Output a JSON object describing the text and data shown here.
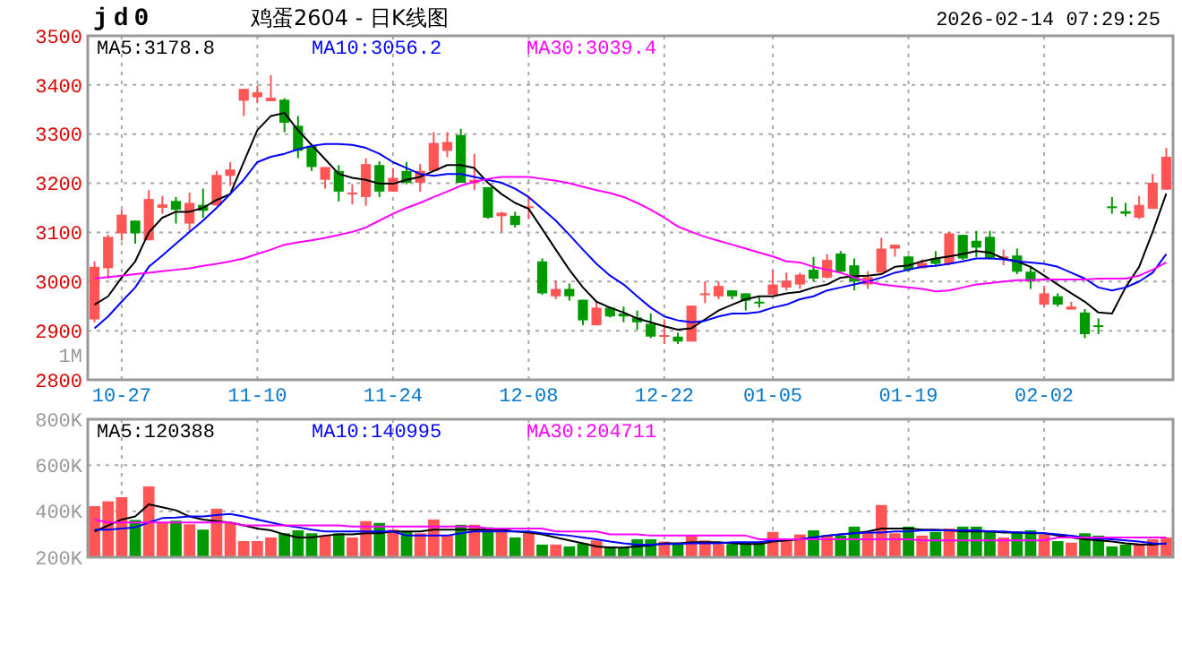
{
  "chart_data": [
    {
      "type": "candlestick",
      "title": "鸡蛋2604 - 日K线图",
      "subtitle": "jd0",
      "annotations": [
        "2026-02-14 07:29:25",
        "1M"
      ],
      "categories": [
        null,
        null,
        "10-27",
        null,
        null,
        null,
        null,
        null,
        null,
        null,
        null,
        null,
        "11-10",
        null,
        null,
        null,
        null,
        null,
        null,
        null,
        null,
        null,
        "11-24",
        null,
        null,
        null,
        null,
        null,
        null,
        null,
        null,
        null,
        "12-08",
        null,
        null,
        null,
        null,
        null,
        null,
        null,
        null,
        null,
        "12-22",
        null,
        null,
        null,
        null,
        null,
        null,
        null,
        "01-05",
        null,
        null,
        null,
        null,
        null,
        null,
        null,
        null,
        null,
        "01-19",
        null,
        null,
        null,
        null,
        null,
        null,
        null,
        null,
        null,
        "02-02",
        null,
        null,
        null,
        null,
        null,
        null,
        null,
        null,
        null
      ],
      "ohlc": [
        [
          2923,
          3041,
          2917,
          3030
        ],
        [
          3027,
          3095,
          3006,
          3091
        ],
        [
          3098,
          3146,
          3083,
          3136
        ],
        [
          3124,
          3124,
          3077,
          3098
        ],
        [
          3084,
          3186,
          3084,
          3168
        ],
        [
          3150,
          3174,
          3138,
          3157
        ],
        [
          3164,
          3172,
          3118,
          3146
        ],
        [
          3118,
          3181,
          3103,
          3160
        ],
        [
          3156,
          3189,
          3130,
          3144
        ],
        [
          3155,
          3225,
          3155,
          3217
        ],
        [
          3215,
          3243,
          3195,
          3228
        ],
        [
          3368,
          3392,
          3337,
          3392
        ],
        [
          3375,
          3399,
          3363,
          3385
        ],
        [
          3367,
          3420,
          3367,
          3374
        ],
        [
          3370,
          3373,
          3304,
          3323
        ],
        [
          3317,
          3337,
          3251,
          3266
        ],
        [
          3276,
          3280,
          3225,
          3233
        ],
        [
          3207,
          3233,
          3189,
          3233
        ],
        [
          3225,
          3237,
          3163,
          3183
        ],
        [
          3179,
          3198,
          3157,
          3181
        ],
        [
          3172,
          3251,
          3154,
          3239
        ],
        [
          3237,
          3245,
          3172,
          3183
        ],
        [
          3183,
          3231,
          3183,
          3211
        ],
        [
          3225,
          3243,
          3198,
          3201
        ],
        [
          3201,
          3239,
          3183,
          3225
        ],
        [
          3225,
          3304,
          3225,
          3282
        ],
        [
          3266,
          3304,
          3253,
          3284
        ],
        [
          3298,
          3311,
          3201,
          3201
        ],
        [
          3200,
          3260,
          3186,
          3207
        ],
        [
          3192,
          3192,
          3128,
          3130
        ],
        [
          3133,
          3142,
          3101,
          3140
        ],
        [
          3134,
          3142,
          3110,
          3115
        ],
        [
          3150,
          3174,
          3127,
          3153
        ],
        [
          3041,
          3047,
          2973,
          2976
        ],
        [
          2970,
          3002,
          2964,
          2985
        ],
        [
          2985,
          2996,
          2961,
          2970
        ],
        [
          2963,
          2963,
          2911,
          2921
        ],
        [
          2911,
          2961,
          2911,
          2947
        ],
        [
          2947,
          2949,
          2927,
          2929
        ],
        [
          2935,
          2949,
          2917,
          2929
        ],
        [
          2927,
          2941,
          2902,
          2917
        ],
        [
          2914,
          2935,
          2885,
          2888
        ],
        [
          2889,
          2923,
          2873,
          2891
        ],
        [
          2888,
          2896,
          2873,
          2878
        ],
        [
          2878,
          2951,
          2878,
          2951
        ],
        [
          2974,
          3000,
          2956,
          2976
        ],
        [
          2970,
          3000,
          2964,
          2991
        ],
        [
          2982,
          2982,
          2964,
          2970
        ],
        [
          2976,
          2976,
          2941,
          2961
        ],
        [
          2959,
          2970,
          2947,
          2956
        ],
        [
          2973,
          3024,
          2973,
          2994
        ],
        [
          2988,
          3018,
          2982,
          3002
        ],
        [
          2994,
          3018,
          2985,
          3014
        ],
        [
          3024,
          3050,
          3000,
          3006
        ],
        [
          3008,
          3056,
          3006,
          3044
        ],
        [
          3057,
          3062,
          3018,
          3020
        ],
        [
          3033,
          3047,
          2982,
          3000
        ],
        [
          2994,
          3021,
          2985,
          3009
        ],
        [
          3018,
          3089,
          3018,
          3067
        ],
        [
          3067,
          3075,
          3051,
          3075
        ],
        [
          3051,
          3053,
          3020,
          3024
        ],
        [
          3027,
          3045,
          3027,
          3038
        ],
        [
          3047,
          3062,
          3032,
          3036
        ],
        [
          3036,
          3101,
          3033,
          3098
        ],
        [
          3095,
          3095,
          3044,
          3047
        ],
        [
          3083,
          3103,
          3050,
          3069
        ],
        [
          3091,
          3103,
          3045,
          3047
        ],
        [
          3047,
          3065,
          3033,
          3051
        ],
        [
          3053,
          3067,
          3015,
          3020
        ],
        [
          3020,
          3032,
          2985,
          3000
        ],
        [
          2953,
          2991,
          2949,
          2976
        ],
        [
          2970,
          2976,
          2949,
          2953
        ],
        [
          2943,
          2959,
          2943,
          2949
        ],
        [
          2937,
          2944,
          2885,
          2893
        ],
        [
          2911,
          2925,
          2893,
          2909
        ],
        [
          3153,
          3172,
          3138,
          3150
        ],
        [
          3143,
          3160,
          3133,
          3138
        ],
        [
          3130,
          3174,
          3127,
          3156
        ],
        [
          3148,
          3219,
          3148,
          3201
        ],
        [
          3187,
          3272,
          3187,
          3254
        ]
      ],
      "colors": [
        "#ff5555",
        "#ff5555",
        "#ff5555",
        "#009900",
        "#ff5555",
        "#ff5555",
        "#009900",
        "#ff5555",
        "#009900",
        "#ff5555",
        "#ff5555",
        "#ff5555",
        "#ff5555",
        "#ff5555",
        "#009900",
        "#009900",
        "#009900",
        "#ff5555",
        "#009900",
        "#ff5555",
        "#ff5555",
        "#009900",
        "#ff5555",
        "#009900",
        "#ff5555",
        "#ff5555",
        "#ff5555",
        "#009900",
        "#ff5555",
        "#009900",
        "#ff5555",
        "#009900",
        "#ff5555",
        "#009900",
        "#ff5555",
        "#009900",
        "#009900",
        "#ff5555",
        "#009900",
        "#009900",
        "#009900",
        "#009900",
        "#ff5555",
        "#009900",
        "#ff5555",
        "#ff5555",
        "#ff5555",
        "#009900",
        "#009900",
        "#009900",
        "#ff5555",
        "#ff5555",
        "#ff5555",
        "#009900",
        "#ff5555",
        "#009900",
        "#009900",
        "#ff5555",
        "#ff5555",
        "#ff5555",
        "#009900",
        "#ff5555",
        "#009900",
        "#ff5555",
        "#009900",
        "#009900",
        "#009900",
        "#ff5555",
        "#009900",
        "#009900",
        "#ff5555",
        "#009900",
        "#ff5555",
        "#009900",
        "#009900",
        "#009900",
        "#009900",
        "#ff5555",
        "#ff5555",
        "#ff5555"
      ],
      "series": [
        {
          "type": "line",
          "name": "MA5:3178.8",
          "color": "#000000",
          "values": [
            2953,
            2970,
            3008,
            3041,
            3100,
            3130,
            3142,
            3142,
            3150,
            3166,
            3178,
            3243,
            3308,
            3337,
            3343,
            3308,
            3278,
            3249,
            3219,
            3211,
            3207,
            3199,
            3199,
            3207,
            3213,
            3225,
            3237,
            3237,
            3231,
            3201,
            3178,
            3160,
            3148,
            3107,
            3065,
            3024,
            2988,
            2959,
            2947,
            2937,
            2925,
            2917,
            2909,
            2902,
            2905,
            2923,
            2941,
            2953,
            2964,
            2970,
            2970,
            2976,
            2979,
            2988,
            2994,
            3008,
            3011,
            3012,
            3015,
            3030,
            3033,
            3041,
            3047,
            3051,
            3056,
            3062,
            3059,
            3047,
            3041,
            3030,
            3012,
            2994,
            2976,
            2959,
            2937,
            2935,
            2988,
            3030,
            3101,
            3179
          ]
        },
        {
          "type": "line",
          "name": "MA10:3056.2",
          "color": "#0000ff",
          "values": [
            2905,
            2929,
            2959,
            2988,
            3030,
            3053,
            3077,
            3101,
            3124,
            3150,
            3178,
            3207,
            3243,
            3254,
            3260,
            3269,
            3276,
            3280,
            3280,
            3278,
            3272,
            3260,
            3243,
            3231,
            3219,
            3215,
            3219,
            3219,
            3213,
            3207,
            3201,
            3189,
            3172,
            3148,
            3124,
            3095,
            3065,
            3036,
            3012,
            2994,
            2970,
            2947,
            2929,
            2921,
            2917,
            2920,
            2929,
            2935,
            2935,
            2938,
            2947,
            2953,
            2964,
            2970,
            2982,
            2988,
            2994,
            3000,
            3008,
            3018,
            3024,
            3030,
            3032,
            3036,
            3041,
            3047,
            3047,
            3045,
            3041,
            3039,
            3036,
            3030,
            3018,
            3006,
            2988,
            2982,
            2988,
            3000,
            3018,
            3056
          ]
        },
        {
          "type": "line",
          "name": "MA30:3039.4",
          "color": "#ff00ff",
          "values": [
            3006,
            3009,
            3012,
            3015,
            3018,
            3021,
            3024,
            3027,
            3032,
            3036,
            3041,
            3047,
            3056,
            3065,
            3075,
            3080,
            3084,
            3089,
            3095,
            3101,
            3110,
            3124,
            3138,
            3150,
            3160,
            3172,
            3183,
            3195,
            3203,
            3209,
            3213,
            3213,
            3213,
            3209,
            3205,
            3200,
            3193,
            3186,
            3180,
            3172,
            3160,
            3146,
            3130,
            3112,
            3101,
            3091,
            3083,
            3075,
            3067,
            3059,
            3051,
            3041,
            3039,
            3030,
            3024,
            3018,
            3008,
            3000,
            2994,
            2991,
            2988,
            2985,
            2980,
            2982,
            2988,
            2994,
            2997,
            3000,
            3003,
            3003,
            3004,
            3004,
            3004,
            3004,
            3006,
            3006,
            3006,
            3012,
            3024,
            3039
          ]
        }
      ],
      "ylim": [
        2800,
        3500
      ],
      "yticks": [
        2800,
        2900,
        3000,
        3100,
        3200,
        3300,
        3400,
        3500
      ],
      "grid": true,
      "legend": "top"
    },
    {
      "type": "bar",
      "categories": [
        null,
        null,
        null,
        null,
        null,
        null,
        null,
        null,
        null,
        null,
        null,
        null,
        null,
        null,
        null,
        null,
        null,
        null,
        null,
        null,
        null,
        null,
        null,
        null,
        null,
        null,
        null,
        null,
        null,
        null,
        null,
        null,
        null,
        null,
        null,
        null,
        null,
        null,
        null,
        null,
        null,
        null,
        null,
        null,
        null,
        null,
        null,
        null,
        null,
        null,
        null,
        null,
        null,
        null,
        null,
        null,
        null,
        null,
        null,
        null,
        null,
        null,
        null,
        null,
        null,
        null,
        null,
        null,
        null,
        null,
        null,
        null,
        null,
        null,
        null,
        null,
        null,
        null,
        null,
        null
      ],
      "values": [
        422000,
        443000,
        461000,
        362000,
        508000,
        351000,
        359000,
        343000,
        320000,
        411000,
        351000,
        270000,
        270000,
        286000,
        304000,
        317000,
        304000,
        294000,
        304000,
        286000,
        357000,
        349000,
        320000,
        312000,
        304000,
        364000,
        294000,
        341000,
        341000,
        330000,
        317000,
        286000,
        312000,
        255000,
        255000,
        247000,
        260000,
        273000,
        247000,
        242000,
        278000,
        278000,
        268000,
        257000,
        294000,
        273000,
        257000,
        257000,
        263000,
        263000,
        310000,
        278000,
        299000,
        317000,
        294000,
        294000,
        333000,
        310000,
        427000,
        304000,
        333000,
        294000,
        310000,
        325000,
        333000,
        333000,
        317000,
        286000,
        312000,
        317000,
        299000,
        270000,
        263000,
        304000,
        294000,
        247000,
        255000,
        260000,
        278000,
        286000
      ],
      "colors": [
        "#ff5555",
        "#ff5555",
        "#ff5555",
        "#009900",
        "#ff5555",
        "#ff5555",
        "#009900",
        "#ff5555",
        "#009900",
        "#ff5555",
        "#ff5555",
        "#ff5555",
        "#ff5555",
        "#ff5555",
        "#009900",
        "#009900",
        "#009900",
        "#ff5555",
        "#009900",
        "#ff5555",
        "#ff5555",
        "#009900",
        "#ff5555",
        "#009900",
        "#ff5555",
        "#ff5555",
        "#ff5555",
        "#009900",
        "#ff5555",
        "#009900",
        "#ff5555",
        "#009900",
        "#ff5555",
        "#009900",
        "#ff5555",
        "#009900",
        "#009900",
        "#ff5555",
        "#009900",
        "#009900",
        "#009900",
        "#009900",
        "#ff5555",
        "#009900",
        "#ff5555",
        "#ff5555",
        "#ff5555",
        "#009900",
        "#009900",
        "#009900",
        "#ff5555",
        "#ff5555",
        "#ff5555",
        "#009900",
        "#ff5555",
        "#009900",
        "#009900",
        "#ff5555",
        "#ff5555",
        "#ff5555",
        "#009900",
        "#ff5555",
        "#009900",
        "#ff5555",
        "#009900",
        "#009900",
        "#009900",
        "#ff5555",
        "#009900",
        "#009900",
        "#ff5555",
        "#009900",
        "#ff5555",
        "#009900",
        "#009900",
        "#009900",
        "#009900",
        "#ff5555",
        "#ff5555",
        "#ff5555"
      ],
      "series": [
        {
          "type": "line",
          "name": "MA5:120388",
          "color": "#000000",
          "values": [
            312000,
            338000,
            364000,
            377000,
            430000,
            417000,
            404000,
            377000,
            364000,
            357000,
            351000,
            338000,
            325000,
            317000,
            299000,
            286000,
            286000,
            294000,
            299000,
            299000,
            304000,
            304000,
            312000,
            312000,
            312000,
            320000,
            320000,
            320000,
            320000,
            320000,
            320000,
            312000,
            307000,
            299000,
            286000,
            273000,
            260000,
            247000,
            242000,
            242000,
            247000,
            252000,
            260000,
            260000,
            265000,
            265000,
            265000,
            260000,
            257000,
            257000,
            268000,
            273000,
            278000,
            286000,
            294000,
            299000,
            304000,
            312000,
            325000,
            325000,
            325000,
            320000,
            320000,
            317000,
            312000,
            312000,
            312000,
            307000,
            307000,
            304000,
            304000,
            294000,
            286000,
            278000,
            273000,
            268000,
            260000,
            255000,
            255000,
            260000
          ]
        },
        {
          "type": "line",
          "name": "MA10:140995",
          "color": "#0000ff",
          "values": [
            320000,
            320000,
            325000,
            330000,
            351000,
            370000,
            372000,
            377000,
            377000,
            383000,
            388000,
            377000,
            364000,
            351000,
            338000,
            330000,
            320000,
            312000,
            312000,
            312000,
            312000,
            312000,
            312000,
            294000,
            294000,
            294000,
            294000,
            304000,
            312000,
            312000,
            312000,
            312000,
            312000,
            304000,
            299000,
            294000,
            286000,
            278000,
            268000,
            260000,
            255000,
            255000,
            257000,
            257000,
            260000,
            260000,
            260000,
            265000,
            265000,
            265000,
            273000,
            278000,
            278000,
            286000,
            294000,
            299000,
            304000,
            307000,
            307000,
            312000,
            312000,
            317000,
            317000,
            317000,
            317000,
            317000,
            312000,
            312000,
            307000,
            307000,
            304000,
            299000,
            294000,
            286000,
            281000,
            278000,
            273000,
            268000,
            260000,
            257000
          ]
        },
        {
          "type": "line",
          "name": "MA30:204711",
          "color": "#ff00ff",
          "values": [
            364000,
            351000,
            351000,
            351000,
            351000,
            351000,
            351000,
            351000,
            351000,
            351000,
            351000,
            338000,
            338000,
            338000,
            338000,
            338000,
            338000,
            338000,
            338000,
            333000,
            333000,
            333000,
            333000,
            333000,
            333000,
            333000,
            333000,
            333000,
            333000,
            325000,
            325000,
            325000,
            325000,
            325000,
            312000,
            312000,
            312000,
            312000,
            299000,
            299000,
            299000,
            294000,
            294000,
            294000,
            294000,
            294000,
            294000,
            294000,
            294000,
            278000,
            278000,
            278000,
            278000,
            278000,
            278000,
            278000,
            278000,
            278000,
            278000,
            278000,
            278000,
            273000,
            273000,
            273000,
            273000,
            273000,
            273000,
            273000,
            273000,
            273000,
            273000,
            286000,
            286000,
            286000,
            286000,
            286000,
            286000,
            286000,
            286000,
            286000
          ]
        }
      ],
      "ylim": [
        200000,
        800000
      ],
      "yticks": [
        {
          "value": 200000,
          "label": "200K"
        },
        {
          "value": 400000,
          "label": "400K"
        },
        {
          "value": 600000,
          "label": "600K"
        },
        {
          "value": 800000,
          "label": "800K"
        }
      ],
      "grid": true,
      "legend": "top",
      "tick_labels": "y"
    }
  ]
}
